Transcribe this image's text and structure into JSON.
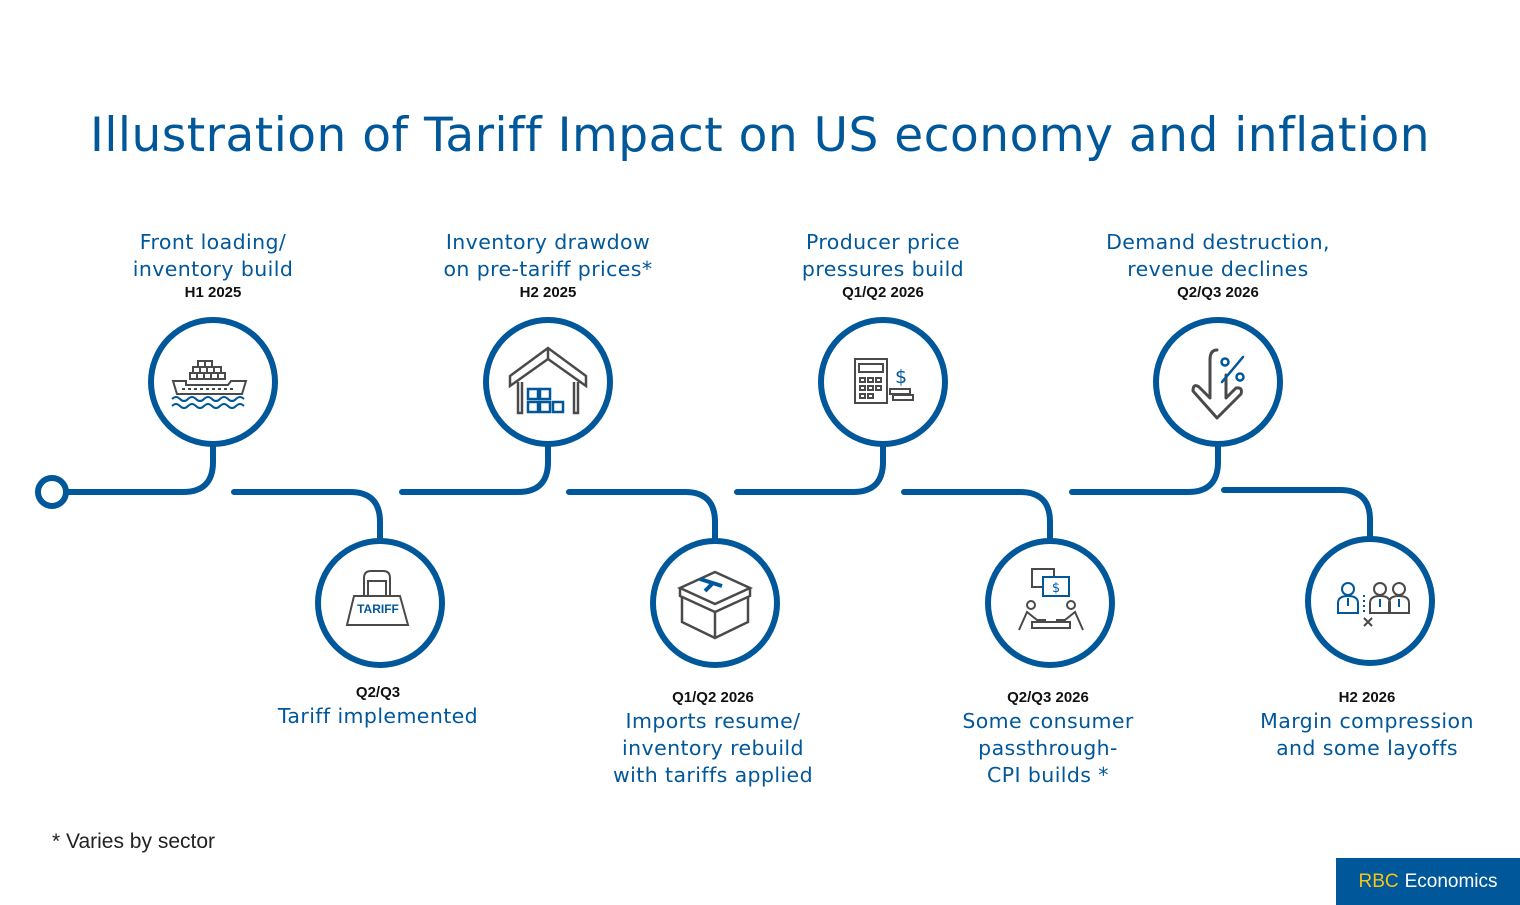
{
  "title": "Illustration of Tariff Impact on US economy and inflation",
  "colors": {
    "primary": "#00579a",
    "icon_gray": "#4a4a4a",
    "logo_accent": "#f5c518"
  },
  "stages": [
    {
      "heading_line1": "Front loading/",
      "heading_line2": "inventory build",
      "date": "H1 2025",
      "icon": "cargo-ship-icon",
      "position": "top"
    },
    {
      "heading_line1": "Tariff implemented",
      "heading_line2": "",
      "date": "Q2/Q3",
      "icon": "tariff-weight-icon",
      "position": "bottom"
    },
    {
      "heading_line1": "Inventory drawdow",
      "heading_line2": "on pre-tariff prices*",
      "date": "H2 2025",
      "icon": "warehouse-icon",
      "position": "top"
    },
    {
      "heading_line1": "Imports resume/",
      "heading_line2": "inventory rebuild",
      "heading_line3": "with tariffs applied",
      "date": "Q1/Q2 2026",
      "icon": "tariff-box-icon",
      "position": "bottom"
    },
    {
      "heading_line1": "Producer price",
      "heading_line2": "pressures build",
      "date": "Q1/Q2 2026",
      "icon": "calculator-dollar-icon",
      "position": "top"
    },
    {
      "heading_line1": "Some consumer",
      "heading_line2": "passthrough-",
      "heading_line3": "CPI builds *",
      "date": "Q2/Q3 2026",
      "icon": "consumers-dollar-icon",
      "position": "bottom"
    },
    {
      "heading_line1": "Demand destruction,",
      "heading_line2": "revenue declines",
      "date": "Q2/Q3 2026",
      "icon": "percent-down-arrow-icon",
      "position": "top"
    },
    {
      "heading_line1": "Margin compression",
      "heading_line2": "and some layoffs",
      "date": "H2 2026",
      "icon": "layoffs-icon",
      "position": "bottom"
    }
  ],
  "tariff_icon_text": "TARIFF",
  "footnote": "* Varies by sector",
  "logo": {
    "brand": "RBC",
    "name": "Economics"
  }
}
